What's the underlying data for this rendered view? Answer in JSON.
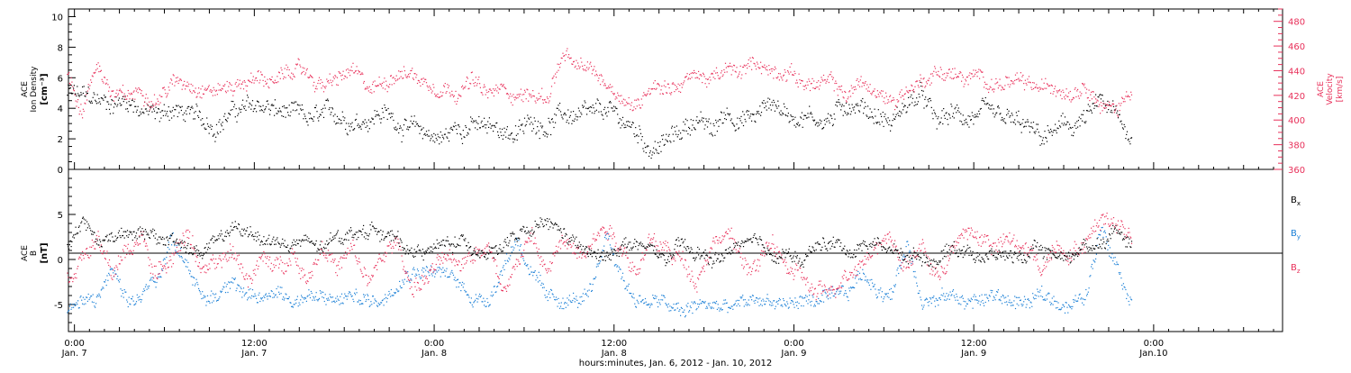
{
  "colors": {
    "black": "#000000",
    "density": "#000000",
    "velocity": "#e8305a",
    "bx": "#000000",
    "by": "#1a7fd6",
    "bz": "#e8305a"
  },
  "x_axis": {
    "label": "hours:minutes, Jan.  6, 2012 - Jan. 10, 2012",
    "range_hours": [
      -0.4,
      80.6
    ],
    "ticks": [
      {
        "hours": 0,
        "time": "0:00",
        "date": "Jan. 7"
      },
      {
        "hours": 12,
        "time": "12:00",
        "date": "Jan. 7"
      },
      {
        "hours": 24,
        "time": "0:00",
        "date": "Jan. 8"
      },
      {
        "hours": 36,
        "time": "12:00",
        "date": "Jan. 8"
      },
      {
        "hours": 48,
        "time": "0:00",
        "date": "Jan. 9"
      },
      {
        "hours": 60,
        "time": "12:00",
        "date": "Jan. 9"
      },
      {
        "hours": 72,
        "time": "0:00",
        "date": "Jan.10"
      }
    ]
  },
  "top_panel": {
    "left_label_line1": "ACE",
    "left_label_line2": "Ion Density",
    "left_label_line3": "[cm⁻³]",
    "right_label_line1": "ACE",
    "right_label_line2": "Velocity",
    "right_label_line3": "[km/s]",
    "left_ticks": [
      "0",
      "2",
      "4",
      "6",
      "8",
      "10"
    ],
    "right_ticks": [
      "360",
      "380",
      "400",
      "420",
      "440",
      "460",
      "480"
    ]
  },
  "bottom_panel": {
    "left_label_line1": "ACE",
    "left_label_line2": "B",
    "left_label_line3": "[nT]",
    "left_ticks": [
      "-5",
      "0",
      "5"
    ],
    "legend": [
      {
        "main": "B",
        "sub": "x"
      },
      {
        "main": "B",
        "sub": "y"
      },
      {
        "main": "B",
        "sub": "z"
      }
    ]
  },
  "chart_data": {
    "type": "scatter",
    "x_unit": "hours from Jan. 7 0:00",
    "panels": [
      {
        "name": "top",
        "ylim_left": [
          0,
          10.5
        ],
        "ylim_right": [
          360,
          490
        ],
        "series": [
          {
            "name": "",
            "axis": "left",
            "x": [
              -0.5,
              0.5,
              1.5,
              2.5,
              3.5,
              4.5,
              5.5,
              6.5,
              7.5,
              8.5,
              9.5,
              10.5,
              11.5,
              12.5,
              13.5,
              14.5,
              15.5,
              16.5,
              17.5,
              18.5,
              19.5,
              20.5,
              21.5,
              22.5,
              23.5,
              24.5,
              25.5,
              26.5,
              27.5,
              28.5,
              29.5,
              30.5,
              31.5,
              32.5,
              33.5,
              34.5,
              35.5,
              36.5,
              37.5,
              38.5,
              39.5,
              40.5,
              41.5,
              42.5,
              43.5,
              44.5,
              45.5,
              46.5,
              47.5,
              48.5,
              49.5,
              50.5,
              51.5,
              52.5,
              53.5,
              54.5,
              55.5,
              56.5,
              57.5,
              58.5,
              59.5,
              60.5,
              61.5,
              62.5,
              63.5,
              64.5,
              65.5,
              66.5,
              67.5,
              68.5,
              69.5,
              70.5
            ],
            "y": [
              5.0,
              4.8,
              4.5,
              4.4,
              4.6,
              4.0,
              3.5,
              4.0,
              3.6,
              3.2,
              3.0,
              3.8,
              4.0,
              4.2,
              3.8,
              3.6,
              3.2,
              3.4,
              3.6,
              3.3,
              3.4,
              3.8,
              3.2,
              2.6,
              2.4,
              2.0,
              2.8,
              3.0,
              2.6,
              2.7,
              2.3,
              3.2,
              3.0,
              3.6,
              3.5,
              3.4,
              3.8,
              3.2,
              2.5,
              1.4,
              1.8,
              2.6,
              3.4,
              2.4,
              3.8,
              3.3,
              3.5,
              4.6,
              3.6,
              3.6,
              3.4,
              3.3,
              4.4,
              4.2,
              3.6,
              3.0,
              4.4,
              4.8,
              3.0,
              3.6,
              3.4,
              3.6,
              3.2,
              3.1,
              2.7,
              2.0,
              2.6,
              2.8,
              3.4,
              4.4,
              3.4,
              2.2
            ]
          },
          {
            "name": "",
            "axis": "right",
            "x": [
              -0.5,
              0.5,
              1.5,
              2.5,
              3.5,
              4.5,
              5.5,
              6.5,
              7.5,
              8.5,
              9.5,
              10.5,
              11.5,
              12.5,
              13.5,
              14.5,
              15.5,
              16.5,
              17.5,
              18.5,
              19.5,
              20.5,
              21.5,
              22.5,
              23.5,
              24.5,
              25.5,
              26.5,
              27.5,
              28.5,
              29.5,
              30.5,
              31.5,
              32.5,
              33.5,
              34.5,
              35.5,
              36.5,
              37.5,
              38.5,
              39.5,
              40.5,
              41.5,
              42.5,
              43.5,
              44.5,
              45.5,
              46.5,
              47.5,
              48.5,
              49.5,
              50.5,
              51.5,
              52.5,
              53.5,
              54.5,
              55.5,
              56.5,
              57.5,
              58.5,
              59.5,
              60.5,
              61.5,
              62.5,
              63.5,
              64.5,
              65.5,
              66.5,
              67.5,
              68.5,
              69.5,
              70.5
            ],
            "y": [
              440,
              408,
              448,
              420,
              418,
              425,
              418,
              430,
              432,
              428,
              425,
              428,
              432,
              435,
              430,
              442,
              438,
              428,
              432,
              440,
              425,
              430,
              440,
              438,
              430,
              428,
              425,
              432,
              420,
              425,
              422,
              420,
              418,
              452,
              442,
              440,
              430,
              420,
              410,
              432,
              428,
              430,
              438,
              432,
              440,
              438,
              448,
              440,
              442,
              432,
              428,
              430,
              420,
              432,
              420,
              416,
              425,
              432,
              440,
              438,
              432,
              435,
              430,
              430,
              428,
              425,
              428,
              425,
              432,
              412,
              408,
              428
            ]
          }
        ]
      },
      {
        "name": "bottom",
        "ylim": [
          -8,
          10
        ],
        "series": [
          {
            "name": "Bx",
            "x": [
              -0.5,
              0.5,
              1.5,
              2.5,
              3.5,
              4.5,
              5.5,
              6.5,
              7.5,
              8.5,
              9.5,
              10.5,
              11.5,
              12.5,
              13.5,
              14.5,
              15.5,
              16.5,
              17.5,
              18.5,
              19.5,
              20.5,
              21.5,
              22.5,
              23.5,
              24.5,
              25.5,
              26.5,
              27.5,
              28.5,
              29.5,
              30.5,
              31.5,
              32.5,
              33.5,
              34.5,
              35.5,
              36.5,
              37.5,
              38.5,
              39.5,
              40.5,
              41.5,
              42.5,
              43.5,
              44.5,
              45.5,
              46.5,
              47.5,
              48.5,
              49.5,
              50.5,
              51.5,
              52.5,
              53.5,
              54.5,
              55.5,
              56.5,
              57.5,
              58.5,
              59.5,
              60.5,
              61.5,
              62.5,
              63.5,
              64.5,
              65.5,
              66.5,
              67.5,
              68.5,
              69.5,
              70.5
            ],
            "y": [
              1.0,
              4.6,
              2.0,
              2.5,
              3.5,
              3.0,
              2.0,
              2.4,
              1.4,
              0.5,
              2.5,
              3.2,
              3.0,
              2.5,
              2.0,
              1.5,
              2.0,
              1.0,
              2.6,
              3.0,
              3.2,
              3.5,
              2.0,
              1.0,
              1.0,
              1.5,
              2.0,
              1.5,
              1.0,
              1.5,
              2.5,
              3.0,
              4.0,
              3.0,
              1.5,
              0.5,
              0.0,
              2.0,
              1.5,
              1.0,
              0.0,
              1.5,
              0.5,
              0.0,
              0.5,
              2.0,
              1.5,
              0.5,
              1.0,
              -0.5,
              1.5,
              2.0,
              1.0,
              1.5,
              2.0,
              1.0,
              0.5,
              0.5,
              0.0,
              1.5,
              1.0,
              0.5,
              0.5,
              0.5,
              0.5,
              1.0,
              0.5,
              0.5,
              1.5,
              2.0,
              3.5,
              2.0
            ]
          },
          {
            "name": "By",
            "x": [
              -0.5,
              0.5,
              1.5,
              2.5,
              3.5,
              4.5,
              5.5,
              6.5,
              7.5,
              8.5,
              9.5,
              10.5,
              11.5,
              12.5,
              13.5,
              14.5,
              15.5,
              16.5,
              17.5,
              18.5,
              19.5,
              20.5,
              21.5,
              22.5,
              23.5,
              24.5,
              25.5,
              26.5,
              27.5,
              28.5,
              29.5,
              30.5,
              31.5,
              32.5,
              33.5,
              34.5,
              35.5,
              36.5,
              37.5,
              38.5,
              39.5,
              40.5,
              41.5,
              42.5,
              43.5,
              44.5,
              45.5,
              46.5,
              47.5,
              48.5,
              49.5,
              50.5,
              51.5,
              52.5,
              53.5,
              54.5,
              55.5,
              56.5,
              57.5,
              58.5,
              59.5,
              60.5,
              61.5,
              62.5,
              63.5,
              64.5,
              65.5,
              66.5,
              67.5,
              68.5,
              69.5,
              70.5
            ],
            "y": [
              -5.5,
              -5.0,
              -4.5,
              -1.0,
              -5.5,
              -4.0,
              -2.0,
              2.5,
              0.0,
              -4.5,
              -4.0,
              -1.5,
              -4.5,
              -4.5,
              -3.0,
              -4.5,
              -4.0,
              -4.5,
              -4.5,
              -4.0,
              -4.5,
              -4.5,
              -2.0,
              -1.0,
              -1.0,
              -1.5,
              -2.5,
              -4.0,
              -4.5,
              -1.0,
              2.5,
              -1.5,
              -4.5,
              -4.5,
              -4.5,
              -4.0,
              3.0,
              -2.0,
              -4.5,
              -4.5,
              -5.0,
              -6.0,
              -5.0,
              -5.0,
              -5.5,
              -5.0,
              -4.5,
              -4.5,
              -5.0,
              -4.5,
              -4.5,
              -4.5,
              -4.0,
              -1.5,
              -3.0,
              -4.0,
              2.0,
              -4.0,
              -4.5,
              -4.0,
              -4.5,
              -4.5,
              -4.0,
              -4.5,
              -5.0,
              -4.0,
              -4.5,
              -5.0,
              -4.0,
              4.0,
              0.0,
              -4.5
            ]
          },
          {
            "name": "Bz",
            "x": [
              -0.5,
              0.5,
              1.5,
              2.5,
              3.5,
              4.5,
              5.5,
              6.5,
              7.5,
              8.5,
              9.5,
              10.5,
              11.5,
              12.5,
              13.5,
              14.5,
              15.5,
              16.5,
              17.5,
              18.5,
              19.5,
              20.5,
              21.5,
              22.5,
              23.5,
              24.5,
              25.5,
              26.5,
              27.5,
              28.5,
              29.5,
              30.5,
              31.5,
              32.5,
              33.5,
              34.5,
              35.5,
              36.5,
              37.5,
              38.5,
              39.5,
              40.5,
              41.5,
              42.5,
              43.5,
              44.5,
              45.5,
              46.5,
              47.5,
              48.5,
              49.5,
              50.5,
              51.5,
              52.5,
              53.5,
              54.5,
              55.5,
              56.5,
              57.5,
              58.5,
              59.5,
              60.5,
              61.5,
              62.5,
              63.5,
              64.5,
              65.5,
              66.5,
              67.5,
              68.5,
              69.5,
              70.5
            ],
            "y": [
              -2.0,
              0.5,
              2.0,
              -1.5,
              1.0,
              2.5,
              -2.0,
              1.0,
              3.0,
              -1.0,
              -1.0,
              1.0,
              -2.0,
              0.0,
              -1.0,
              1.0,
              -2.0,
              2.0,
              -1.0,
              1.0,
              -2.5,
              0.0,
              2.0,
              -3.0,
              -2.0,
              0.0,
              -1.0,
              1.0,
              2.0,
              -3.0,
              0.0,
              2.5,
              -1.5,
              2.0,
              1.0,
              2.5,
              4.0,
              1.5,
              -1.0,
              2.0,
              1.0,
              0.0,
              -2.0,
              2.0,
              3.0,
              0.0,
              -1.0,
              2.0,
              -1.0,
              -2.0,
              -4.0,
              -3.5,
              -1.0,
              0.0,
              2.0,
              2.5,
              -1.0,
              1.5,
              -2.0,
              1.0,
              3.0,
              2.5,
              1.5,
              2.0,
              1.0,
              -1.0,
              2.0,
              1.0,
              2.0,
              5.0,
              4.0,
              3.5
            ]
          }
        ]
      }
    ]
  }
}
